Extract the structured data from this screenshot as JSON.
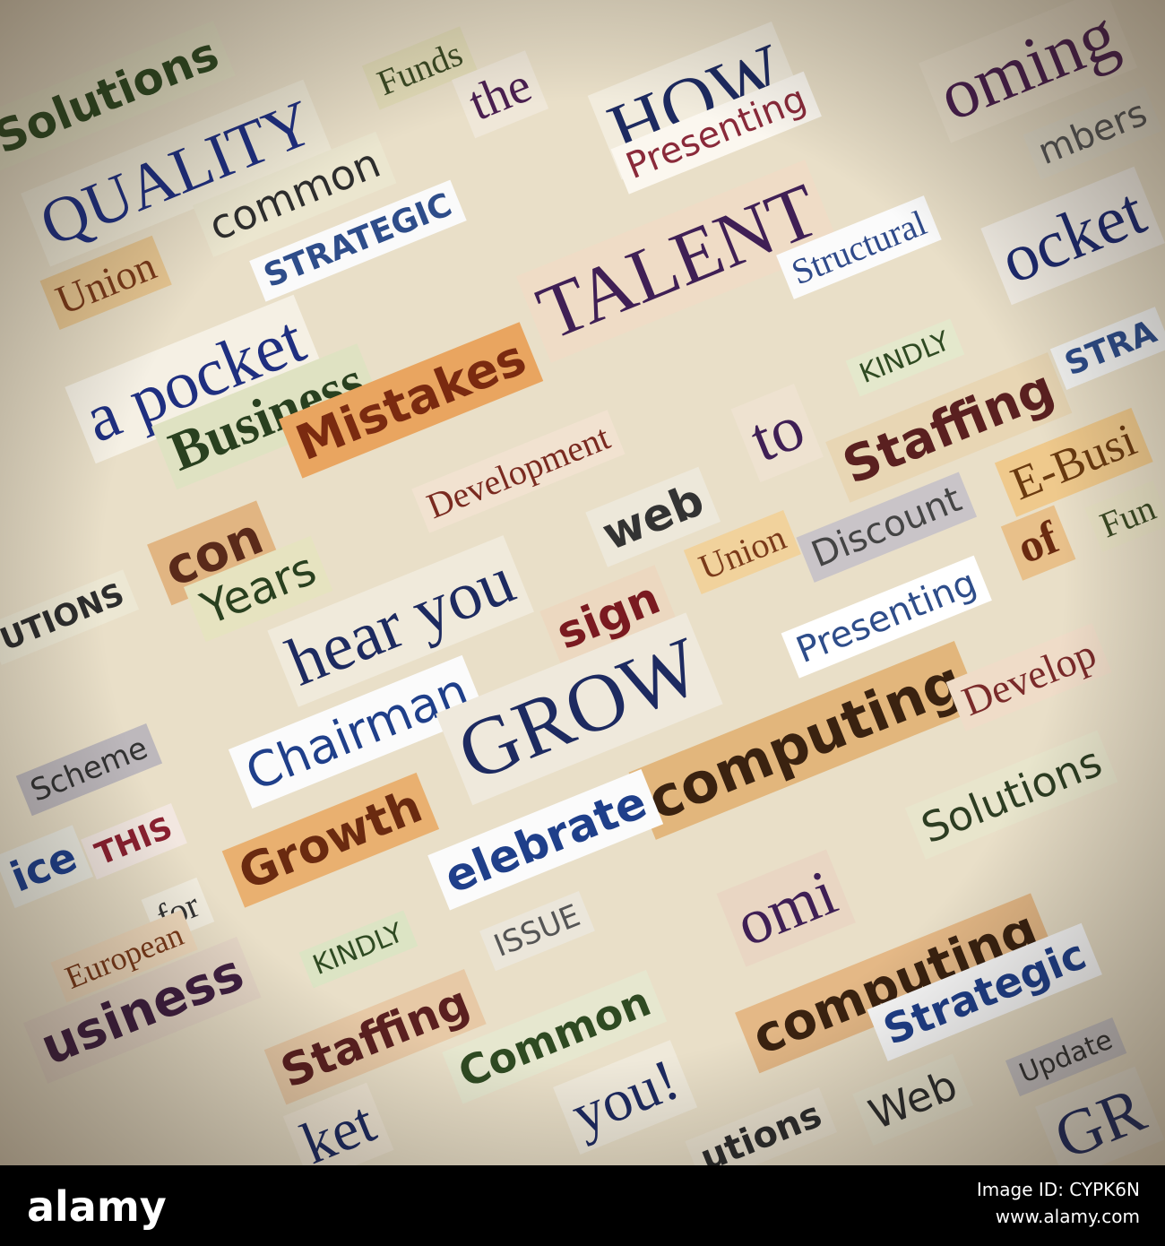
{
  "clippings": [
    "Solutions",
    "QUALITY",
    "Funds",
    "the",
    "HOW",
    "Presenting",
    "oming",
    "mbers",
    "common",
    "STRATEGIC",
    "Union",
    "TALENT",
    "Structural",
    "ocket",
    "a pocket",
    "Business",
    "Mistakes",
    "Development",
    "KINDLY",
    "STRA",
    "to",
    "Staffing",
    "E-Busi",
    "con",
    "Years",
    "hear you",
    "web",
    "Union",
    "Discount",
    "Presenting",
    "of",
    "Fun",
    "UTIONS",
    "sign",
    "Chairman",
    "GROW",
    "computing",
    "Develop",
    "Scheme",
    "THIS",
    "ice",
    "Growth",
    "elebrate",
    "Solutions",
    "for",
    "KINDLY",
    "ISSUE",
    "omi",
    "computing",
    "Common",
    "Strategic",
    "usiness",
    "Staffing",
    "you!",
    "Web",
    "Update",
    "utions",
    "ket",
    "European",
    "GR"
  ],
  "footer": {
    "logo": "alamy",
    "image_id": "Image ID: CYPK6N",
    "url": "www.alamy.com"
  }
}
